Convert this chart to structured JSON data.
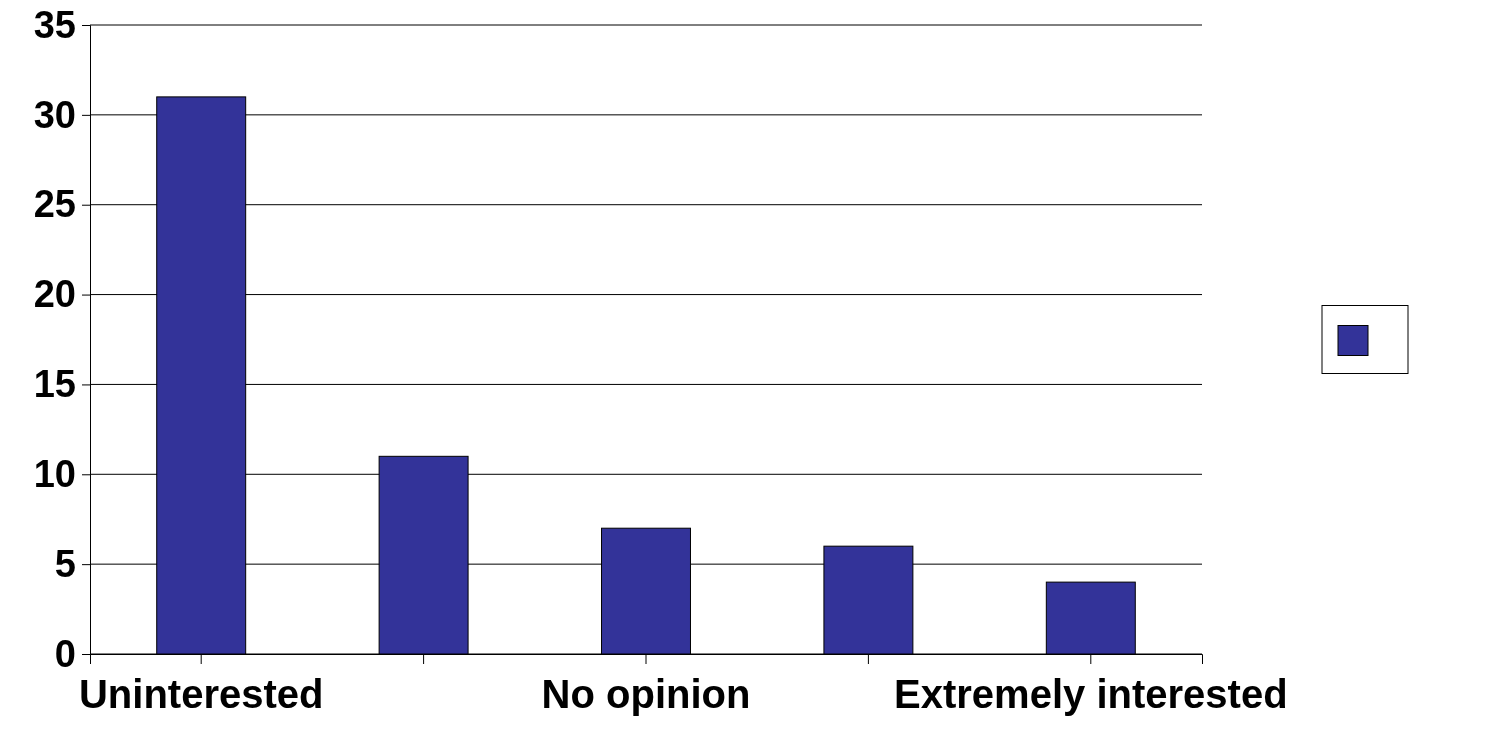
{
  "chart_data": {
    "type": "bar",
    "categories": [
      "Uninterested",
      null,
      "No opinion",
      null,
      "Extremely interested"
    ],
    "values": [
      31,
      11,
      7,
      6,
      4
    ],
    "color": "#333399",
    "ylim": [
      0,
      35
    ],
    "yticks": [
      0,
      5,
      10,
      15,
      20,
      25,
      30,
      35
    ],
    "grid": "y"
  }
}
